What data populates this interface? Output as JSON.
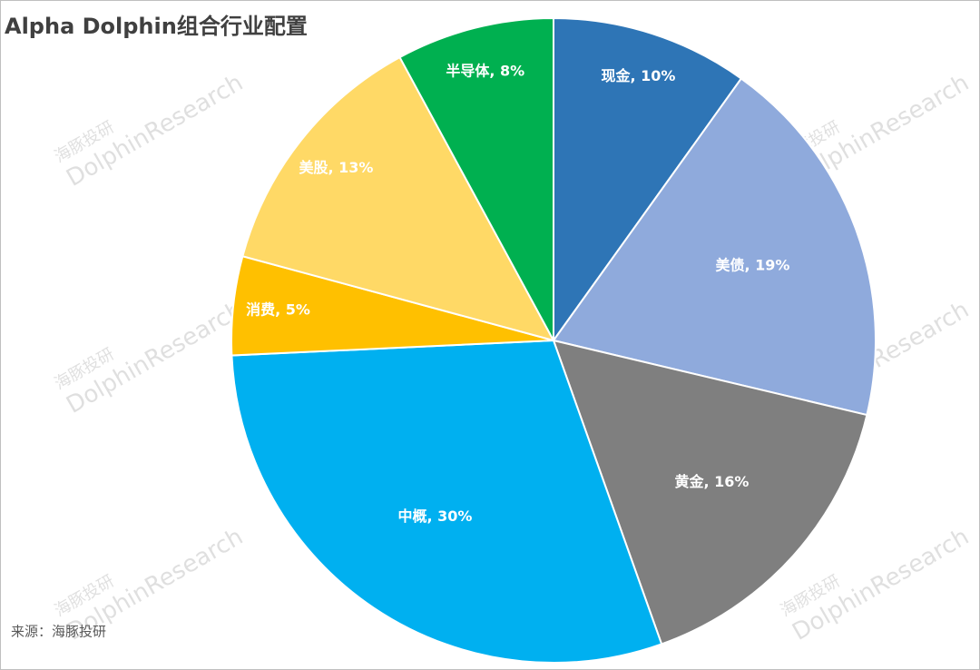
{
  "chart_data": {
    "type": "pie",
    "title": "Alpha Dolphin组合行业配置",
    "categories": [
      "现金",
      "美债",
      "黄金",
      "中概",
      "消费",
      "美股",
      "半导体"
    ],
    "values": [
      10,
      19,
      16,
      30,
      5,
      13,
      8
    ],
    "value_labels": [
      "现金, 10%",
      "美债, 19%",
      "黄金, 16%",
      "中概, 30%",
      "消费, 5%",
      "美股, 13%",
      "半导体, 8%"
    ],
    "colors": [
      "#2e75b6",
      "#8faadc",
      "#7f7f7f",
      "#00b0f0",
      "#ffc000",
      "#ffd966",
      "#00b050"
    ],
    "source": "来源：海豚投研",
    "watermark": [
      "海豚投研",
      "DolphinResearch"
    ]
  }
}
